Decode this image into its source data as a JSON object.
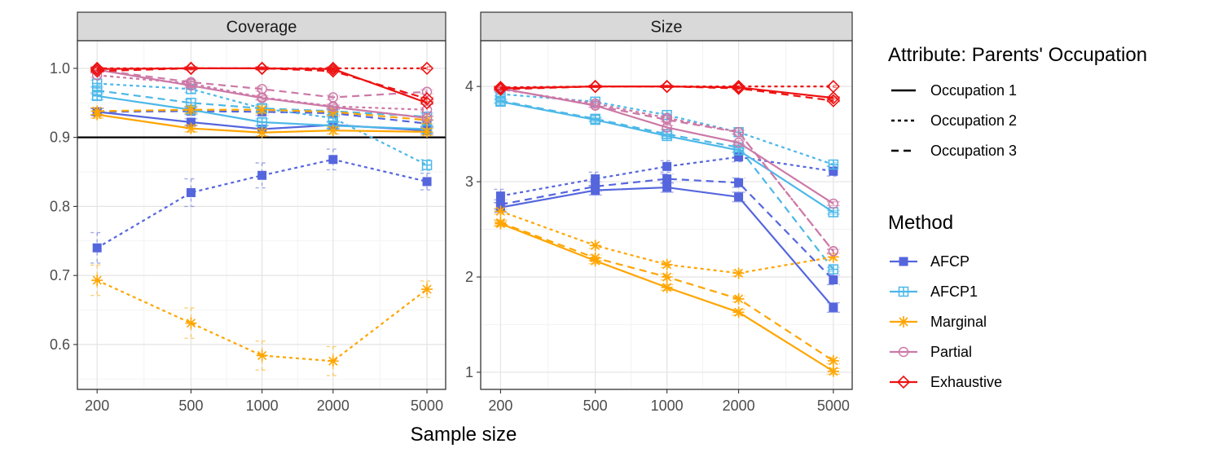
{
  "figure": {
    "xlabel": "Sample size"
  },
  "chart_data": [
    {
      "type": "line",
      "title": "Coverage",
      "x": [
        200,
        500,
        1000,
        2000,
        5000
      ],
      "x_scale": "log",
      "xlim": [
        165,
        6000
      ],
      "ylim": [
        0.535,
        1.04
      ],
      "y_ticks": [
        0.6,
        0.7,
        0.8,
        0.9,
        1.0
      ],
      "y_tick_labels": [
        "0.6",
        "0.7",
        "0.8",
        "0.9",
        "1.0"
      ],
      "reference_line": 0.9,
      "series": [
        {
          "method": "AFCP",
          "occupation": "Occupation 1",
          "values": [
            0.937,
            0.922,
            0.912,
            0.918,
            0.91
          ],
          "err": [
            0.005,
            0.005,
            0.005,
            0.005,
            0.005
          ]
        },
        {
          "method": "AFCP",
          "occupation": "Occupation 2",
          "values": [
            0.74,
            0.82,
            0.845,
            0.868,
            0.836
          ],
          "err": [
            0.022,
            0.02,
            0.018,
            0.015,
            0.012
          ]
        },
        {
          "method": "AFCP",
          "occupation": "Occupation 3",
          "values": [
            0.937,
            0.938,
            0.937,
            0.935,
            0.92
          ],
          "err": [
            0.005,
            0.005,
            0.005,
            0.005,
            0.005
          ]
        },
        {
          "method": "AFCP1",
          "occupation": "Occupation 1",
          "values": [
            0.96,
            0.94,
            0.922,
            0.917,
            0.912
          ],
          "err": [
            0.005,
            0.005,
            0.005,
            0.005,
            0.005
          ]
        },
        {
          "method": "AFCP1",
          "occupation": "Occupation 2",
          "values": [
            0.978,
            0.97,
            0.942,
            0.928,
            0.86
          ],
          "err": [
            0.005,
            0.005,
            0.005,
            0.005,
            0.008
          ]
        },
        {
          "method": "AFCP1",
          "occupation": "Occupation 3",
          "values": [
            0.968,
            0.95,
            0.942,
            0.938,
            0.93
          ],
          "err": [
            0.005,
            0.005,
            0.005,
            0.005,
            0.005
          ]
        },
        {
          "method": "Marginal",
          "occupation": "Occupation 1",
          "values": [
            0.933,
            0.913,
            0.907,
            0.91,
            0.908
          ],
          "err": [
            0.005,
            0.005,
            0.005,
            0.005,
            0.005
          ]
        },
        {
          "method": "Marginal",
          "occupation": "Occupation 2",
          "values": [
            0.693,
            0.631,
            0.584,
            0.576,
            0.68
          ],
          "err": [
            0.022,
            0.022,
            0.021,
            0.021,
            0.012
          ]
        },
        {
          "method": "Marginal",
          "occupation": "Occupation 3",
          "values": [
            0.938,
            0.94,
            0.94,
            0.937,
            0.925
          ],
          "err": [
            0.005,
            0.005,
            0.005,
            0.005,
            0.005
          ]
        },
        {
          "method": "Partial",
          "occupation": "Occupation 1",
          "values": [
            0.998,
            0.975,
            0.957,
            0.944,
            0.928
          ],
          "err": [
            0.003,
            0.003,
            0.003,
            0.003,
            0.003
          ]
        },
        {
          "method": "Partial",
          "occupation": "Occupation 2",
          "values": [
            0.99,
            0.978,
            0.958,
            0.945,
            0.94
          ],
          "err": [
            0.003,
            0.003,
            0.003,
            0.003,
            0.003
          ]
        },
        {
          "method": "Partial",
          "occupation": "Occupation 3",
          "values": [
            0.998,
            0.98,
            0.97,
            0.958,
            0.966
          ],
          "err": [
            0.003,
            0.003,
            0.003,
            0.003,
            0.003
          ]
        },
        {
          "method": "Exhaustive",
          "occupation": "Occupation 1",
          "values": [
            0.999,
            1.0,
            1.0,
            0.999,
            0.95
          ],
          "err": [
            0.002,
            0.002,
            0.002,
            0.002,
            0.002
          ]
        },
        {
          "method": "Exhaustive",
          "occupation": "Occupation 2",
          "values": [
            1.0,
            1.0,
            1.0,
            1.0,
            1.0
          ],
          "err": [
            0.002,
            0.002,
            0.002,
            0.002,
            0.002
          ]
        },
        {
          "method": "Exhaustive",
          "occupation": "Occupation 3",
          "values": [
            0.996,
            1.0,
            1.0,
            0.996,
            0.956
          ],
          "err": [
            0.002,
            0.002,
            0.002,
            0.002,
            0.002
          ]
        }
      ]
    },
    {
      "type": "line",
      "title": "Size",
      "x": [
        200,
        500,
        1000,
        2000,
        5000
      ],
      "x_scale": "log",
      "xlim": [
        165,
        6000
      ],
      "ylim": [
        0.82,
        4.48
      ],
      "y_ticks": [
        1,
        2,
        3,
        4
      ],
      "y_tick_labels": [
        "1",
        "2",
        "3",
        "4"
      ],
      "series": [
        {
          "method": "AFCP",
          "occupation": "Occupation 1",
          "values": [
            2.73,
            2.91,
            2.94,
            2.84,
            1.68
          ],
          "err": [
            0.05,
            0.05,
            0.05,
            0.05,
            0.05
          ]
        },
        {
          "method": "AFCP",
          "occupation": "Occupation 2",
          "values": [
            2.85,
            3.03,
            3.16,
            3.26,
            3.11
          ],
          "err": [
            0.07,
            0.07,
            0.06,
            0.05,
            0.05
          ]
        },
        {
          "method": "AFCP",
          "occupation": "Occupation 3",
          "values": [
            2.76,
            2.95,
            3.03,
            2.99,
            1.97
          ],
          "err": [
            0.05,
            0.05,
            0.05,
            0.05,
            0.05
          ]
        },
        {
          "method": "AFCP1",
          "occupation": "Occupation 1",
          "values": [
            3.84,
            3.65,
            3.48,
            3.33,
            2.68
          ],
          "err": [
            0.02,
            0.02,
            0.02,
            0.02,
            0.02
          ]
        },
        {
          "method": "AFCP1",
          "occupation": "Occupation 2",
          "values": [
            3.92,
            3.84,
            3.7,
            3.52,
            3.18
          ],
          "err": [
            0.02,
            0.02,
            0.02,
            0.02,
            0.02
          ]
        },
        {
          "method": "AFCP1",
          "occupation": "Occupation 3",
          "values": [
            3.85,
            3.66,
            3.5,
            3.36,
            2.08
          ],
          "err": [
            0.02,
            0.02,
            0.02,
            0.02,
            0.02
          ]
        },
        {
          "method": "Marginal",
          "occupation": "Occupation 1",
          "values": [
            2.56,
            2.17,
            1.89,
            1.63,
            1.01
          ],
          "err": [
            0.03,
            0.03,
            0.03,
            0.03,
            0.03
          ]
        },
        {
          "method": "Marginal",
          "occupation": "Occupation 2",
          "values": [
            2.69,
            2.33,
            2.13,
            2.04,
            2.21
          ],
          "err": [
            0.03,
            0.03,
            0.03,
            0.03,
            0.03
          ]
        },
        {
          "method": "Marginal",
          "occupation": "Occupation 3",
          "values": [
            2.57,
            2.2,
            2.0,
            1.77,
            1.12
          ],
          "err": [
            0.03,
            0.03,
            0.03,
            0.03,
            0.03
          ]
        },
        {
          "method": "Partial",
          "occupation": "Occupation 1",
          "values": [
            3.98,
            3.8,
            3.57,
            3.41,
            2.77
          ],
          "err": [
            0.02,
            0.02,
            0.02,
            0.02,
            0.02
          ]
        },
        {
          "method": "Partial",
          "occupation": "Occupation 2",
          "values": [
            3.97,
            3.82,
            3.67,
            3.52,
            2.27
          ],
          "err": [
            0.02,
            0.02,
            0.02,
            0.02,
            0.02
          ]
        },
        {
          "method": "Partial",
          "occupation": "Occupation 3",
          "values": [
            3.98,
            3.8,
            3.65,
            3.52,
            2.27
          ],
          "err": [
            0.02,
            0.02,
            0.02,
            0.02,
            0.02
          ]
        },
        {
          "method": "Exhaustive",
          "occupation": "Occupation 1",
          "values": [
            3.98,
            4.0,
            4.0,
            3.99,
            3.88
          ],
          "err": [
            0.01,
            0.01,
            0.01,
            0.01,
            0.01
          ]
        },
        {
          "method": "Exhaustive",
          "occupation": "Occupation 2",
          "values": [
            3.99,
            4.0,
            4.0,
            4.0,
            4.0
          ],
          "err": [
            0.01,
            0.01,
            0.01,
            0.01,
            0.01
          ]
        },
        {
          "method": "Exhaustive",
          "occupation": "Occupation 3",
          "values": [
            3.97,
            4.0,
            4.0,
            3.98,
            3.85
          ],
          "err": [
            0.01,
            0.01,
            0.01,
            0.01,
            0.01
          ]
        }
      ]
    }
  ],
  "legend": {
    "linetype_title": "Attribute: Parents' Occupation",
    "linetypes": [
      {
        "label": "Occupation 1",
        "dash": "solid"
      },
      {
        "label": "Occupation 2",
        "dash": "dotted"
      },
      {
        "label": "Occupation 3",
        "dash": "dashed"
      }
    ],
    "method_title": "Method",
    "methods": [
      {
        "label": "AFCP",
        "color": "#5566dd",
        "shape": "filled-square"
      },
      {
        "label": "AFCP1",
        "color": "#4db8e8",
        "shape": "square-plus"
      },
      {
        "label": "Marginal",
        "color": "#ffa500",
        "shape": "asterisk"
      },
      {
        "label": "Partial",
        "color": "#cc79a7",
        "shape": "open-circle"
      },
      {
        "label": "Exhaustive",
        "color": "#ee1111",
        "shape": "open-diamond"
      }
    ]
  }
}
